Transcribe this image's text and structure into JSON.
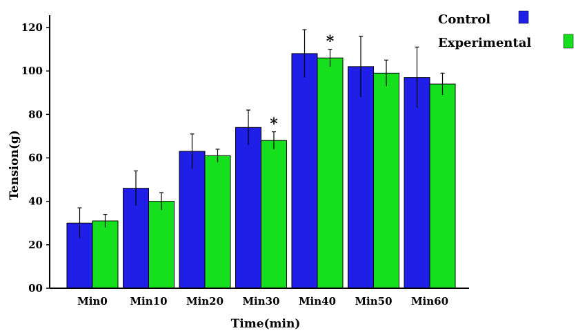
{
  "chart_data": {
    "type": "bar",
    "xlabel": "Time(min)",
    "ylabel": "Tension(g)",
    "ylim": [
      0,
      120
    ],
    "yticks": [
      {
        "value": 0,
        "label": "00"
      },
      {
        "value": 20,
        "label": "20"
      },
      {
        "value": 40,
        "label": "40"
      },
      {
        "value": 60,
        "label": "60"
      },
      {
        "value": 80,
        "label": "80"
      },
      {
        "value": 100,
        "label": "100"
      },
      {
        "value": 120,
        "label": "120"
      }
    ],
    "categories": [
      "Min0",
      "Min10",
      "Min20",
      "Min30",
      "Min40",
      "Min50",
      "Min60"
    ],
    "series": [
      {
        "name": "Control",
        "color": "#1f1fe8",
        "values": [
          30,
          46,
          63,
          74,
          108,
          102,
          97
        ],
        "errors": [
          7,
          8,
          8,
          8,
          11,
          14,
          14
        ]
      },
      {
        "name": "Experimental",
        "color": "#16e01e",
        "values": [
          31,
          40,
          61,
          68,
          106,
          99,
          94
        ],
        "errors": [
          3,
          4,
          3,
          4,
          4,
          6,
          5
        ]
      }
    ],
    "annotations": [
      {
        "category": "Min30",
        "text": "*"
      },
      {
        "category": "Min40",
        "text": "*"
      }
    ],
    "legend_position": "top-right",
    "grid": false
  }
}
